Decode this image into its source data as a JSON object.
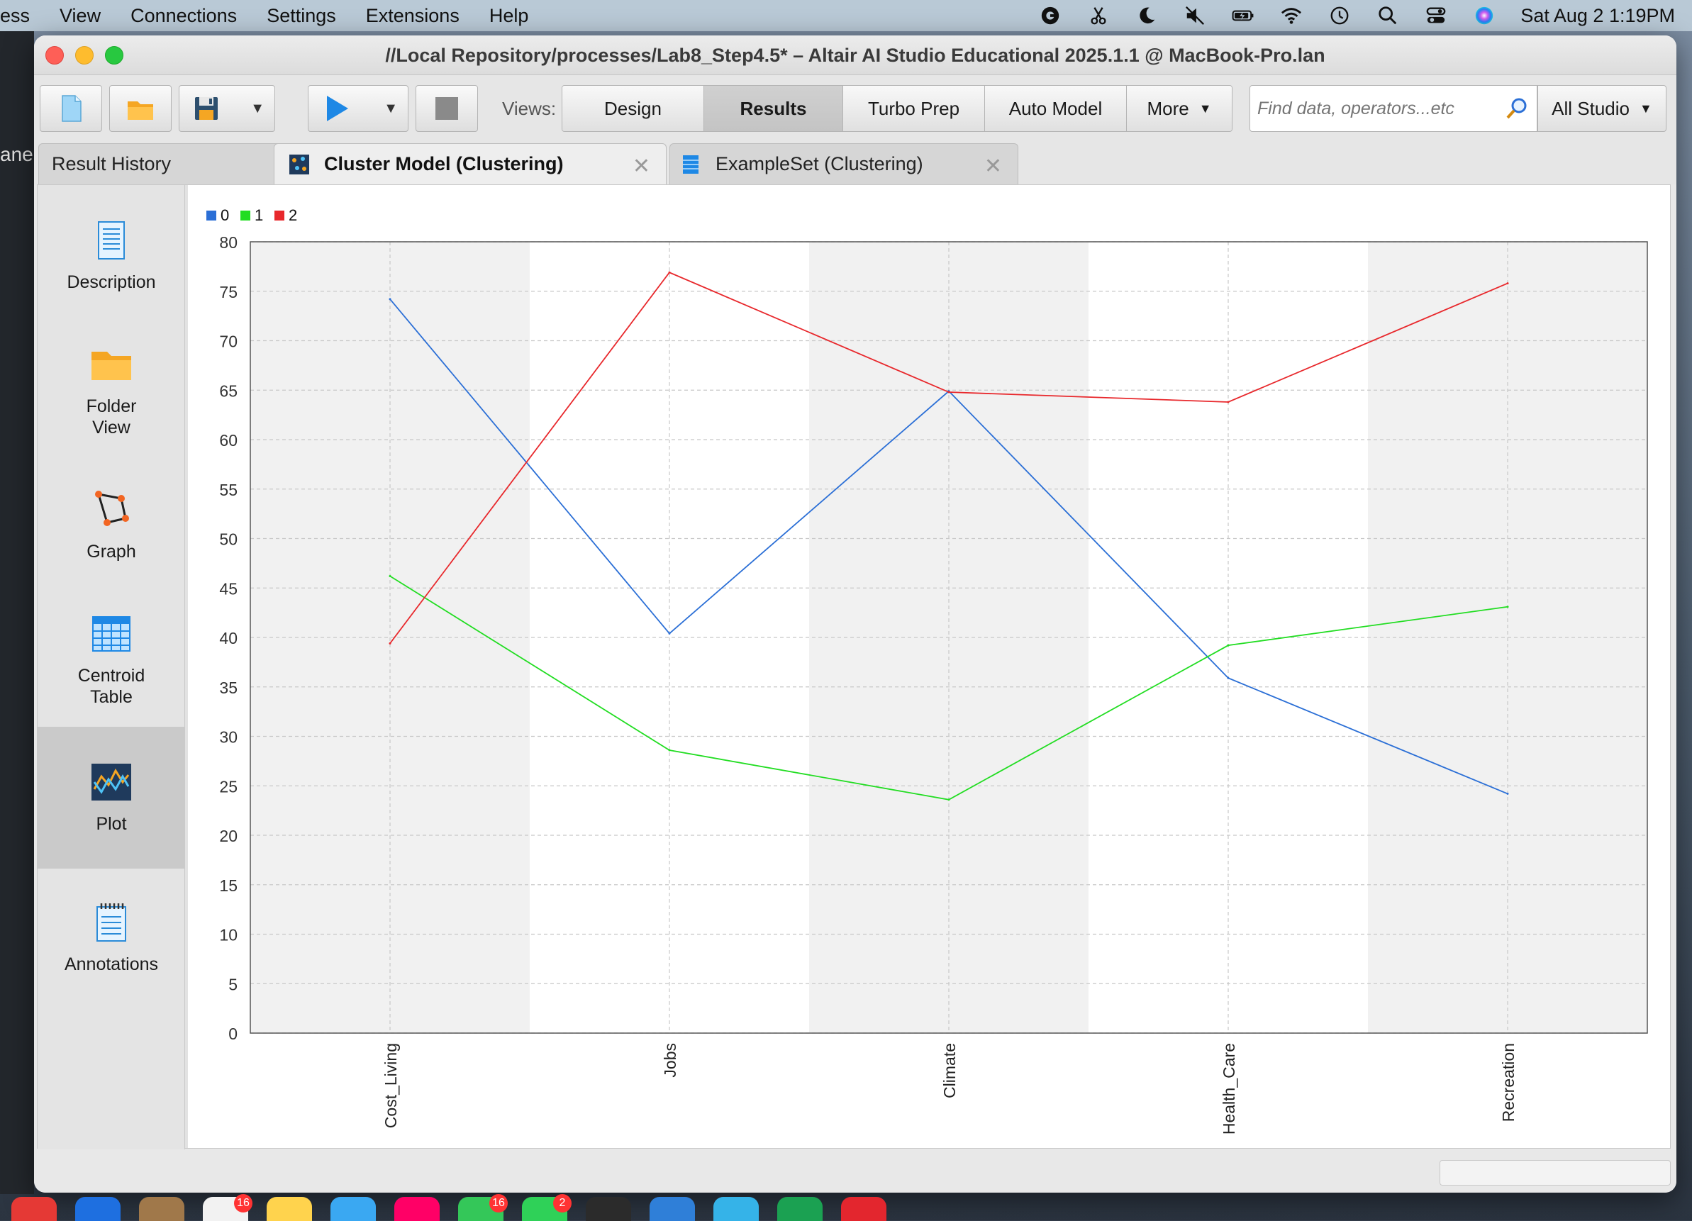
{
  "menubar": {
    "items": [
      "ess",
      "View",
      "Connections",
      "Settings",
      "Extensions",
      "Help"
    ],
    "clock": "Sat Aug 2  1:19PM"
  },
  "background_app": {
    "label": "ane:"
  },
  "window": {
    "title": "//Local Repository/processes/Lab8_Step4.5* – Altair AI Studio Educational 2025.1.1 @ MacBook-Pro.lan"
  },
  "toolbar": {
    "views_label": "Views:",
    "views": [
      "Design",
      "Results",
      "Turbo Prep",
      "Auto Model",
      "More"
    ],
    "active_view": "Results",
    "search_placeholder": "Find data, operators...etc",
    "scope": "All Studio"
  },
  "tabs": [
    {
      "label": "Result History"
    },
    {
      "label": "Cluster Model (Clustering)"
    },
    {
      "label": "ExampleSet (Clustering)"
    }
  ],
  "sidebar": {
    "items": [
      {
        "label": "Description"
      },
      {
        "label": "Folder\nView"
      },
      {
        "label": "Graph"
      },
      {
        "label": "Centroid\nTable"
      },
      {
        "label": "Plot"
      },
      {
        "label": "Annotations"
      }
    ],
    "active": "Plot"
  },
  "chart_data": {
    "type": "line",
    "title": "",
    "xlabel": "",
    "ylabel": "",
    "categories": [
      "Cost_Living",
      "Jobs",
      "Climate",
      "Health_Care",
      "Recreation"
    ],
    "ylim": [
      0,
      80
    ],
    "yticks": [
      0,
      5,
      10,
      15,
      20,
      25,
      30,
      35,
      40,
      45,
      50,
      55,
      60,
      65,
      70,
      75,
      80
    ],
    "legend_position": "top-left",
    "grid": true,
    "series": [
      {
        "name": "0",
        "color": "#2b6fd6",
        "values": [
          74.2,
          40.4,
          64.9,
          35.9,
          24.2
        ]
      },
      {
        "name": "1",
        "color": "#22dd22",
        "values": [
          46.2,
          28.6,
          23.6,
          39.2,
          43.1
        ]
      },
      {
        "name": "2",
        "color": "#e8282c",
        "values": [
          39.4,
          76.9,
          64.8,
          63.8,
          75.8
        ]
      }
    ]
  },
  "dock": {
    "badges": [
      "16",
      "16",
      "2"
    ]
  }
}
